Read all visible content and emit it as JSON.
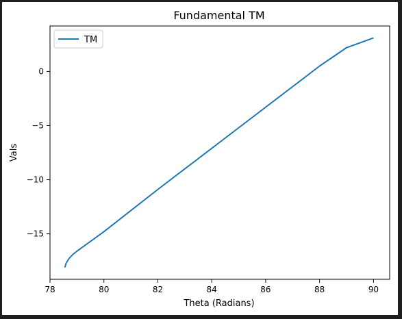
{
  "chart_data": {
    "type": "line",
    "title": "Fundamental TM",
    "xlabel": "Theta (Radians)",
    "ylabel": "Vals",
    "xlim": [
      78.0,
      90.6
    ],
    "ylim": [
      -19.2,
      4.2
    ],
    "xticks": [
      78,
      80,
      82,
      84,
      86,
      88,
      90
    ],
    "yticks": [
      0,
      -5,
      -10,
      -15
    ],
    "ytick_labels": [
      "0",
      "−5",
      "−10",
      "−15"
    ],
    "grid": false,
    "legend_position": "top-left",
    "series": [
      {
        "name": "TM",
        "color": "#1f77b4",
        "x": [
          78.55,
          78.6,
          78.7,
          78.85,
          79.0,
          79.5,
          80.0,
          81.0,
          82.0,
          83.0,
          84.0,
          85.0,
          86.0,
          87.0,
          88.0,
          89.0,
          90.0
        ],
        "y": [
          -18.1,
          -17.7,
          -17.3,
          -16.9,
          -16.6,
          -15.7,
          -14.8,
          -12.85,
          -10.9,
          -9.0,
          -7.1,
          -5.2,
          -3.3,
          -1.4,
          0.5,
          2.2,
          3.1
        ]
      }
    ]
  }
}
